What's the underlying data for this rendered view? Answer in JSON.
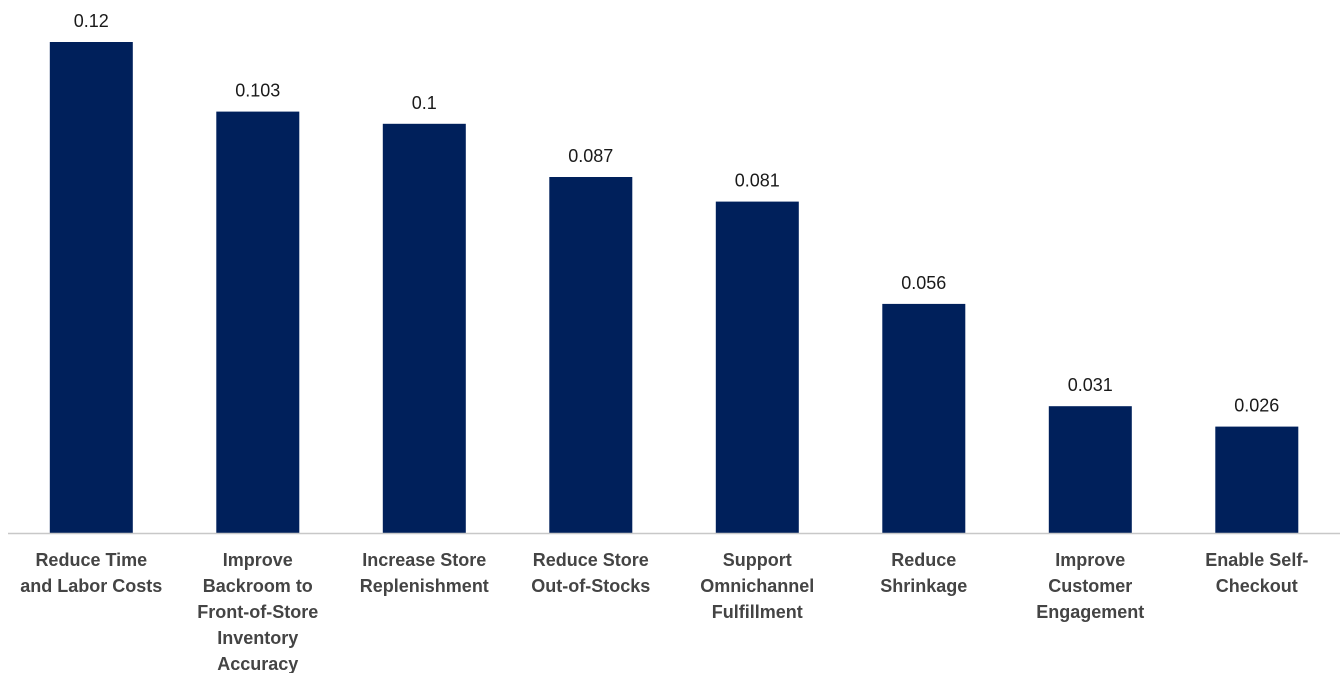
{
  "chart_data": {
    "type": "bar",
    "title": "",
    "xlabel": "",
    "ylabel": "",
    "categories": [
      "Reduce Time and Labor Costs",
      "Improve Backroom to Front-of-Store Inventory Accuracy",
      "Increase Store Replenishment",
      "Reduce Store Out-of-Stocks",
      "Support Omnichannel Fulfillment",
      "Reduce Shrinkage",
      "Improve Customer Engagement",
      "Enable Self-Checkout"
    ],
    "category_lines": [
      [
        "Reduce Time",
        "and Labor Costs"
      ],
      [
        "Improve",
        "Backroom to",
        "Front-of-Store",
        "Inventory",
        "Accuracy"
      ],
      [
        "Increase Store",
        "Replenishment"
      ],
      [
        "Reduce Store",
        "Out-of-Stocks"
      ],
      [
        "Support",
        "Omnichannel",
        "Fulfillment"
      ],
      [
        "Reduce",
        "Shrinkage"
      ],
      [
        "Improve",
        "Customer",
        "Engagement"
      ],
      [
        "Enable Self-",
        "Checkout"
      ]
    ],
    "values": [
      0.12,
      0.103,
      0.1,
      0.087,
      0.081,
      0.056,
      0.031,
      0.026
    ],
    "data_labels": [
      "0.12",
      "0.103",
      "0.1",
      "0.087",
      "0.081",
      "0.056",
      "0.031",
      "0.026"
    ],
    "ylim": [
      0,
      0.12
    ],
    "grid": false,
    "legend": "none",
    "colors": {
      "bar": "#00205b",
      "axis": "#c8c8c8",
      "value_text": "#1a1a1a",
      "category_text": "#444444"
    }
  }
}
